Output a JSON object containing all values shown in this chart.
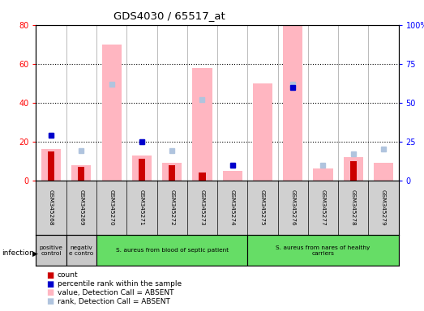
{
  "title": "GDS4030 / 65517_at",
  "samples": [
    "GSM345268",
    "GSM345269",
    "GSM345270",
    "GSM345271",
    "GSM345272",
    "GSM345273",
    "GSM345274",
    "GSM345275",
    "GSM345276",
    "GSM345277",
    "GSM345278",
    "GSM345279"
  ],
  "count_values": [
    15,
    7,
    0,
    11,
    8,
    4,
    0,
    0,
    0,
    0,
    10,
    0
  ],
  "percentile_rank": [
    29,
    0,
    0,
    25,
    0,
    0,
    10,
    0,
    60,
    0,
    0,
    0
  ],
  "absent_value": [
    16,
    8,
    70,
    13,
    9,
    58,
    5,
    50,
    80,
    6,
    12,
    9
  ],
  "absent_rank": [
    29,
    19,
    62,
    25,
    19,
    52,
    10,
    0,
    62,
    10,
    17,
    20
  ],
  "group_info": [
    {
      "label": "positive\ncontrol",
      "start": 0,
      "end": 1,
      "color": "#c8c8c8"
    },
    {
      "label": "negativ\ne contro",
      "start": 1,
      "end": 2,
      "color": "#c8c8c8"
    },
    {
      "label": "S. aureus from blood of septic patient",
      "start": 2,
      "end": 7,
      "color": "#66dd66"
    },
    {
      "label": "S. aureus from nares of healthy\ncarriers",
      "start": 7,
      "end": 12,
      "color": "#66dd66"
    }
  ],
  "infection_label": "infection",
  "ylim_left": [
    0,
    80
  ],
  "ylim_right": [
    0,
    100
  ],
  "yticks_left": [
    0,
    20,
    40,
    60,
    80
  ],
  "yticks_right": [
    0,
    25,
    50,
    75,
    100
  ],
  "ytick_labels_right": [
    "0",
    "25",
    "50",
    "75",
    "100%"
  ],
  "color_count": "#cc0000",
  "color_percentile": "#0000cc",
  "color_absent_value": "#ffb6c1",
  "color_absent_rank": "#b0c4de",
  "legend_items": [
    {
      "label": "count",
      "color": "#cc0000"
    },
    {
      "label": "percentile rank within the sample",
      "color": "#0000cc"
    },
    {
      "label": "value, Detection Call = ABSENT",
      "color": "#ffb6c1"
    },
    {
      "label": "rank, Detection Call = ABSENT",
      "color": "#b0c4de"
    }
  ],
  "grid_lines": [
    20,
    40,
    60
  ],
  "fig_width": 5.23,
  "fig_height": 3.84,
  "fig_dpi": 100
}
